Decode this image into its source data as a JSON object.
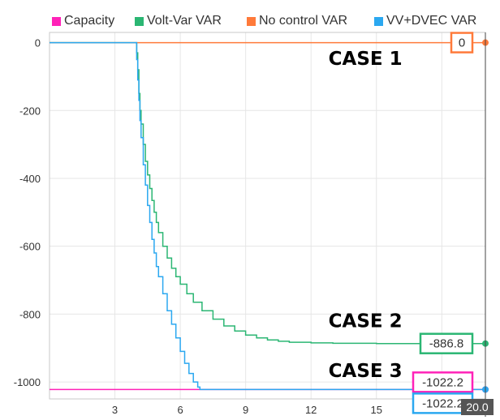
{
  "chart_data": {
    "type": "line",
    "title": "",
    "xlabel": "",
    "ylabel": "",
    "xlim": [
      0,
      20
    ],
    "ylim": [
      -1050,
      30
    ],
    "x_ticks": [
      3,
      6,
      9,
      12,
      15,
      18
    ],
    "y_ticks": [
      0,
      -200,
      -400,
      -600,
      -800,
      -1000
    ],
    "grid": true,
    "legend_position": "top",
    "cursor_x_label": "20.0",
    "series": [
      {
        "name": "Capacity",
        "color": "#ff22b8",
        "step": false,
        "x": [
          0,
          20
        ],
        "y": [
          -1022.2,
          -1022.2
        ]
      },
      {
        "name": "Volt-Var VAR",
        "color": "#2bb673",
        "step": true,
        "x": [
          0,
          3.9,
          4.0,
          4.05,
          4.1,
          4.15,
          4.2,
          4.3,
          4.4,
          4.5,
          4.6,
          4.7,
          4.8,
          4.9,
          5.0,
          5.2,
          5.4,
          5.6,
          5.8,
          6.0,
          6.3,
          6.6,
          7.0,
          7.5,
          8.0,
          8.5,
          9.0,
          9.5,
          10.0,
          10.5,
          11.0,
          12.0,
          13.0,
          15.0,
          18.0,
          20.0
        ],
        "y": [
          0,
          0,
          -30,
          -80,
          -150,
          -200,
          -240,
          -300,
          -350,
          -390,
          -430,
          -465,
          -500,
          -530,
          -560,
          -600,
          -635,
          -665,
          -690,
          -712,
          -740,
          -765,
          -790,
          -815,
          -835,
          -850,
          -862,
          -870,
          -876,
          -880,
          -883,
          -885,
          -886,
          -886.8,
          -886.8,
          -886.8
        ]
      },
      {
        "name": "No control VAR",
        "color": "#ff7a3a",
        "step": false,
        "x": [
          0,
          20
        ],
        "y": [
          0,
          0
        ]
      },
      {
        "name": "VV+DVEC VAR",
        "color": "#2ba8f0",
        "step": true,
        "x": [
          0,
          3.9,
          4.0,
          4.05,
          4.1,
          4.15,
          4.2,
          4.3,
          4.4,
          4.5,
          4.6,
          4.7,
          4.8,
          4.9,
          5.0,
          5.2,
          5.4,
          5.6,
          5.8,
          6.0,
          6.2,
          6.4,
          6.6,
          6.8,
          6.9,
          7.0,
          20.0
        ],
        "y": [
          0,
          0,
          -50,
          -110,
          -170,
          -230,
          -280,
          -360,
          -420,
          -480,
          -530,
          -580,
          -620,
          -660,
          -690,
          -740,
          -790,
          -830,
          -870,
          -910,
          -945,
          -975,
          -1000,
          -1015,
          -1022.2,
          -1022.2,
          -1022.2
        ]
      }
    ],
    "annotations": [
      {
        "text": "CASE 1",
        "x": 12.8,
        "y": -65
      },
      {
        "text": "CASE 2",
        "x": 12.8,
        "y": -838
      },
      {
        "text": "CASE 3",
        "x": 12.8,
        "y": -985
      }
    ],
    "value_labels": [
      {
        "text": "0",
        "series": "No control VAR",
        "y": 0
      },
      {
        "text": "-886.8",
        "series": "Volt-Var VAR",
        "y": -886.8
      },
      {
        "text": "-1022.2",
        "series": "Capacity",
        "y": -1022.2
      },
      {
        "text": "-1022.2",
        "series": "VV+DVEC VAR",
        "y": -1022.2
      }
    ]
  }
}
